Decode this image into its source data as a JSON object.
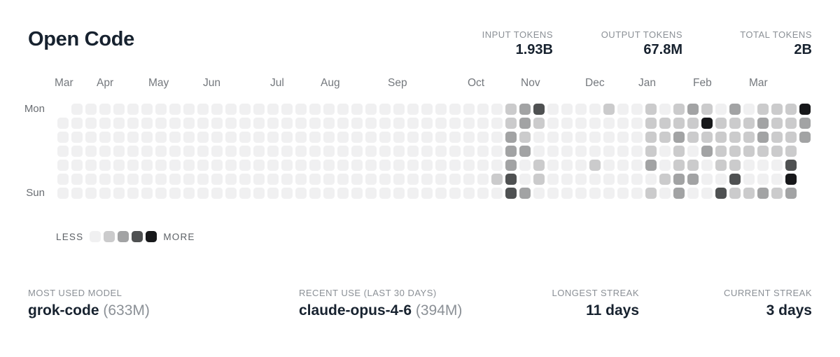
{
  "title": "Open Code",
  "top_stats": [
    {
      "label": "INPUT TOKENS",
      "value": "1.93B"
    },
    {
      "label": "OUTPUT TOKENS",
      "value": "67.8M"
    },
    {
      "label": "TOTAL TOKENS",
      "value": "2B"
    }
  ],
  "legend": {
    "less": "LESS",
    "more": "MORE"
  },
  "bottom_stats": [
    {
      "label": "MOST USED MODEL",
      "value": "grok-code",
      "detail": "(633M)"
    },
    {
      "label": "RECENT USE (LAST 30 DAYS)",
      "value": "claude-opus-4-6",
      "detail": "(394M)"
    },
    {
      "label": "LONGEST STREAK",
      "value": "11 days",
      "detail": ""
    },
    {
      "label": "CURRENT STREAK",
      "value": "3 days",
      "detail": ""
    }
  ],
  "chart_data": {
    "type": "heatmap",
    "title": "Open Code token usage by day",
    "rows": 7,
    "cols": 54,
    "day_labels": [
      {
        "label": "Mon",
        "row": 0
      },
      {
        "label": "Sun",
        "row": 6
      }
    ],
    "months": [
      {
        "label": "Mar",
        "col": 0
      },
      {
        "label": "Apr",
        "col": 3
      },
      {
        "label": "May",
        "col": 6.7
      },
      {
        "label": "Jun",
        "col": 10.6
      },
      {
        "label": "Jul",
        "col": 15.4
      },
      {
        "label": "Aug",
        "col": 19
      },
      {
        "label": "Sep",
        "col": 23.8
      },
      {
        "label": "Oct",
        "col": 29.5
      },
      {
        "label": "Nov",
        "col": 33.3
      },
      {
        "label": "Dec",
        "col": 37.9
      },
      {
        "label": "Jan",
        "col": 41.7
      },
      {
        "label": "Feb",
        "col": 45.6
      },
      {
        "label": "Mar",
        "col": 49.6
      }
    ],
    "legend_levels": [
      "#f0f0f1",
      "#cbcbcc",
      "#a2a3a4",
      "#4f5152",
      "#17181a"
    ],
    "level_meaning": "0=none 1=light 2=medium 3=dark 4=max, x=no day in range",
    "grid_rows": [
      "x00000000000000000000000000000001230000100101210201114",
      "000000000000000000000000000000001210000000111141112112",
      "000000000000000000000000000000002100000000112111112112",
      "00000000000000000000000000000000220000000010102111111x",
      "00000000000000000000000000000000201000100020110110003x",
      "0000000000000000000000000000000130100000000122003000 4x",
      "000000000000000000000000000000003200000000102003112 12x"
    ],
    "colors": {
      "text_dark": "#17222f",
      "label_gray": "#8b9096",
      "axis_gray": "#74787d"
    }
  }
}
